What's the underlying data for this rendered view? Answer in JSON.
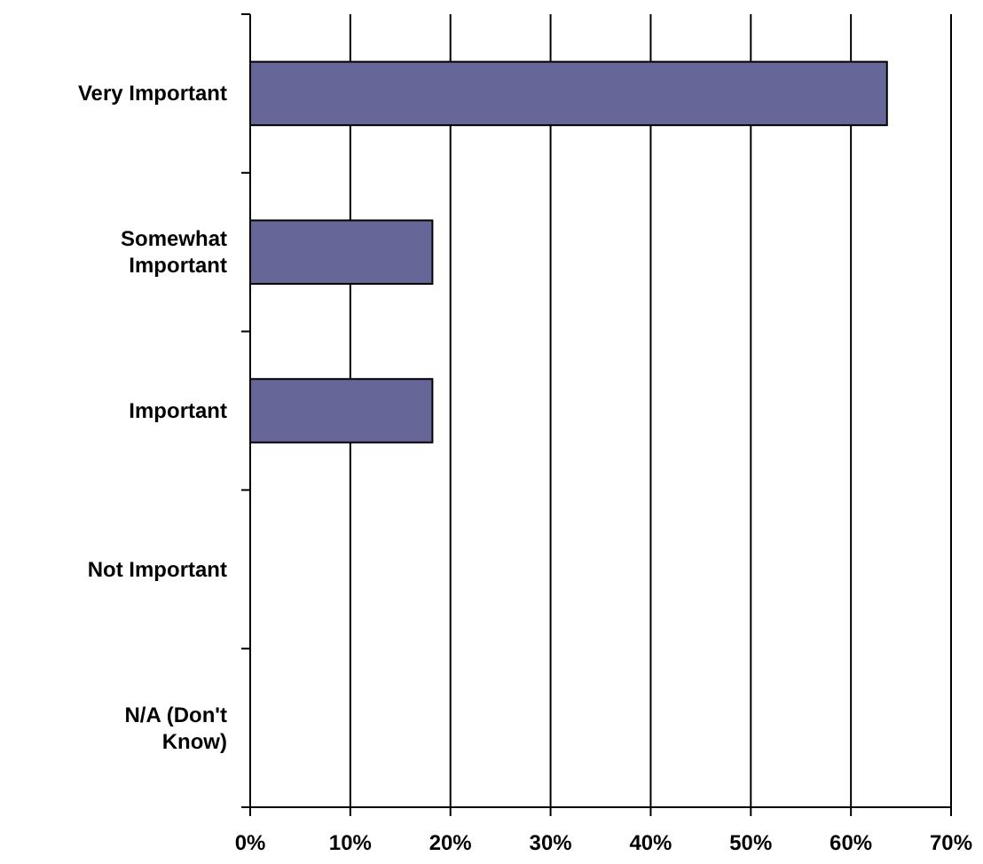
{
  "chart_data": {
    "type": "bar",
    "orientation": "horizontal",
    "categories": [
      "Very Important",
      "Somewhat Important",
      "Important",
      "Not Important",
      "N/A (Don't Know)"
    ],
    "values": [
      63.6,
      18.2,
      18.2,
      0,
      0
    ],
    "color": "#666699",
    "xlim": [
      0,
      70
    ],
    "xticks": [
      {
        "value": 0,
        "label": "0%"
      },
      {
        "value": 10,
        "label": "10%"
      },
      {
        "value": 20,
        "label": "20%"
      },
      {
        "value": 30,
        "label": "30%"
      },
      {
        "value": 40,
        "label": "40%"
      },
      {
        "value": 50,
        "label": "50%"
      },
      {
        "value": 60,
        "label": "60%"
      },
      {
        "value": 70,
        "label": "70%"
      }
    ],
    "grid": "x"
  }
}
